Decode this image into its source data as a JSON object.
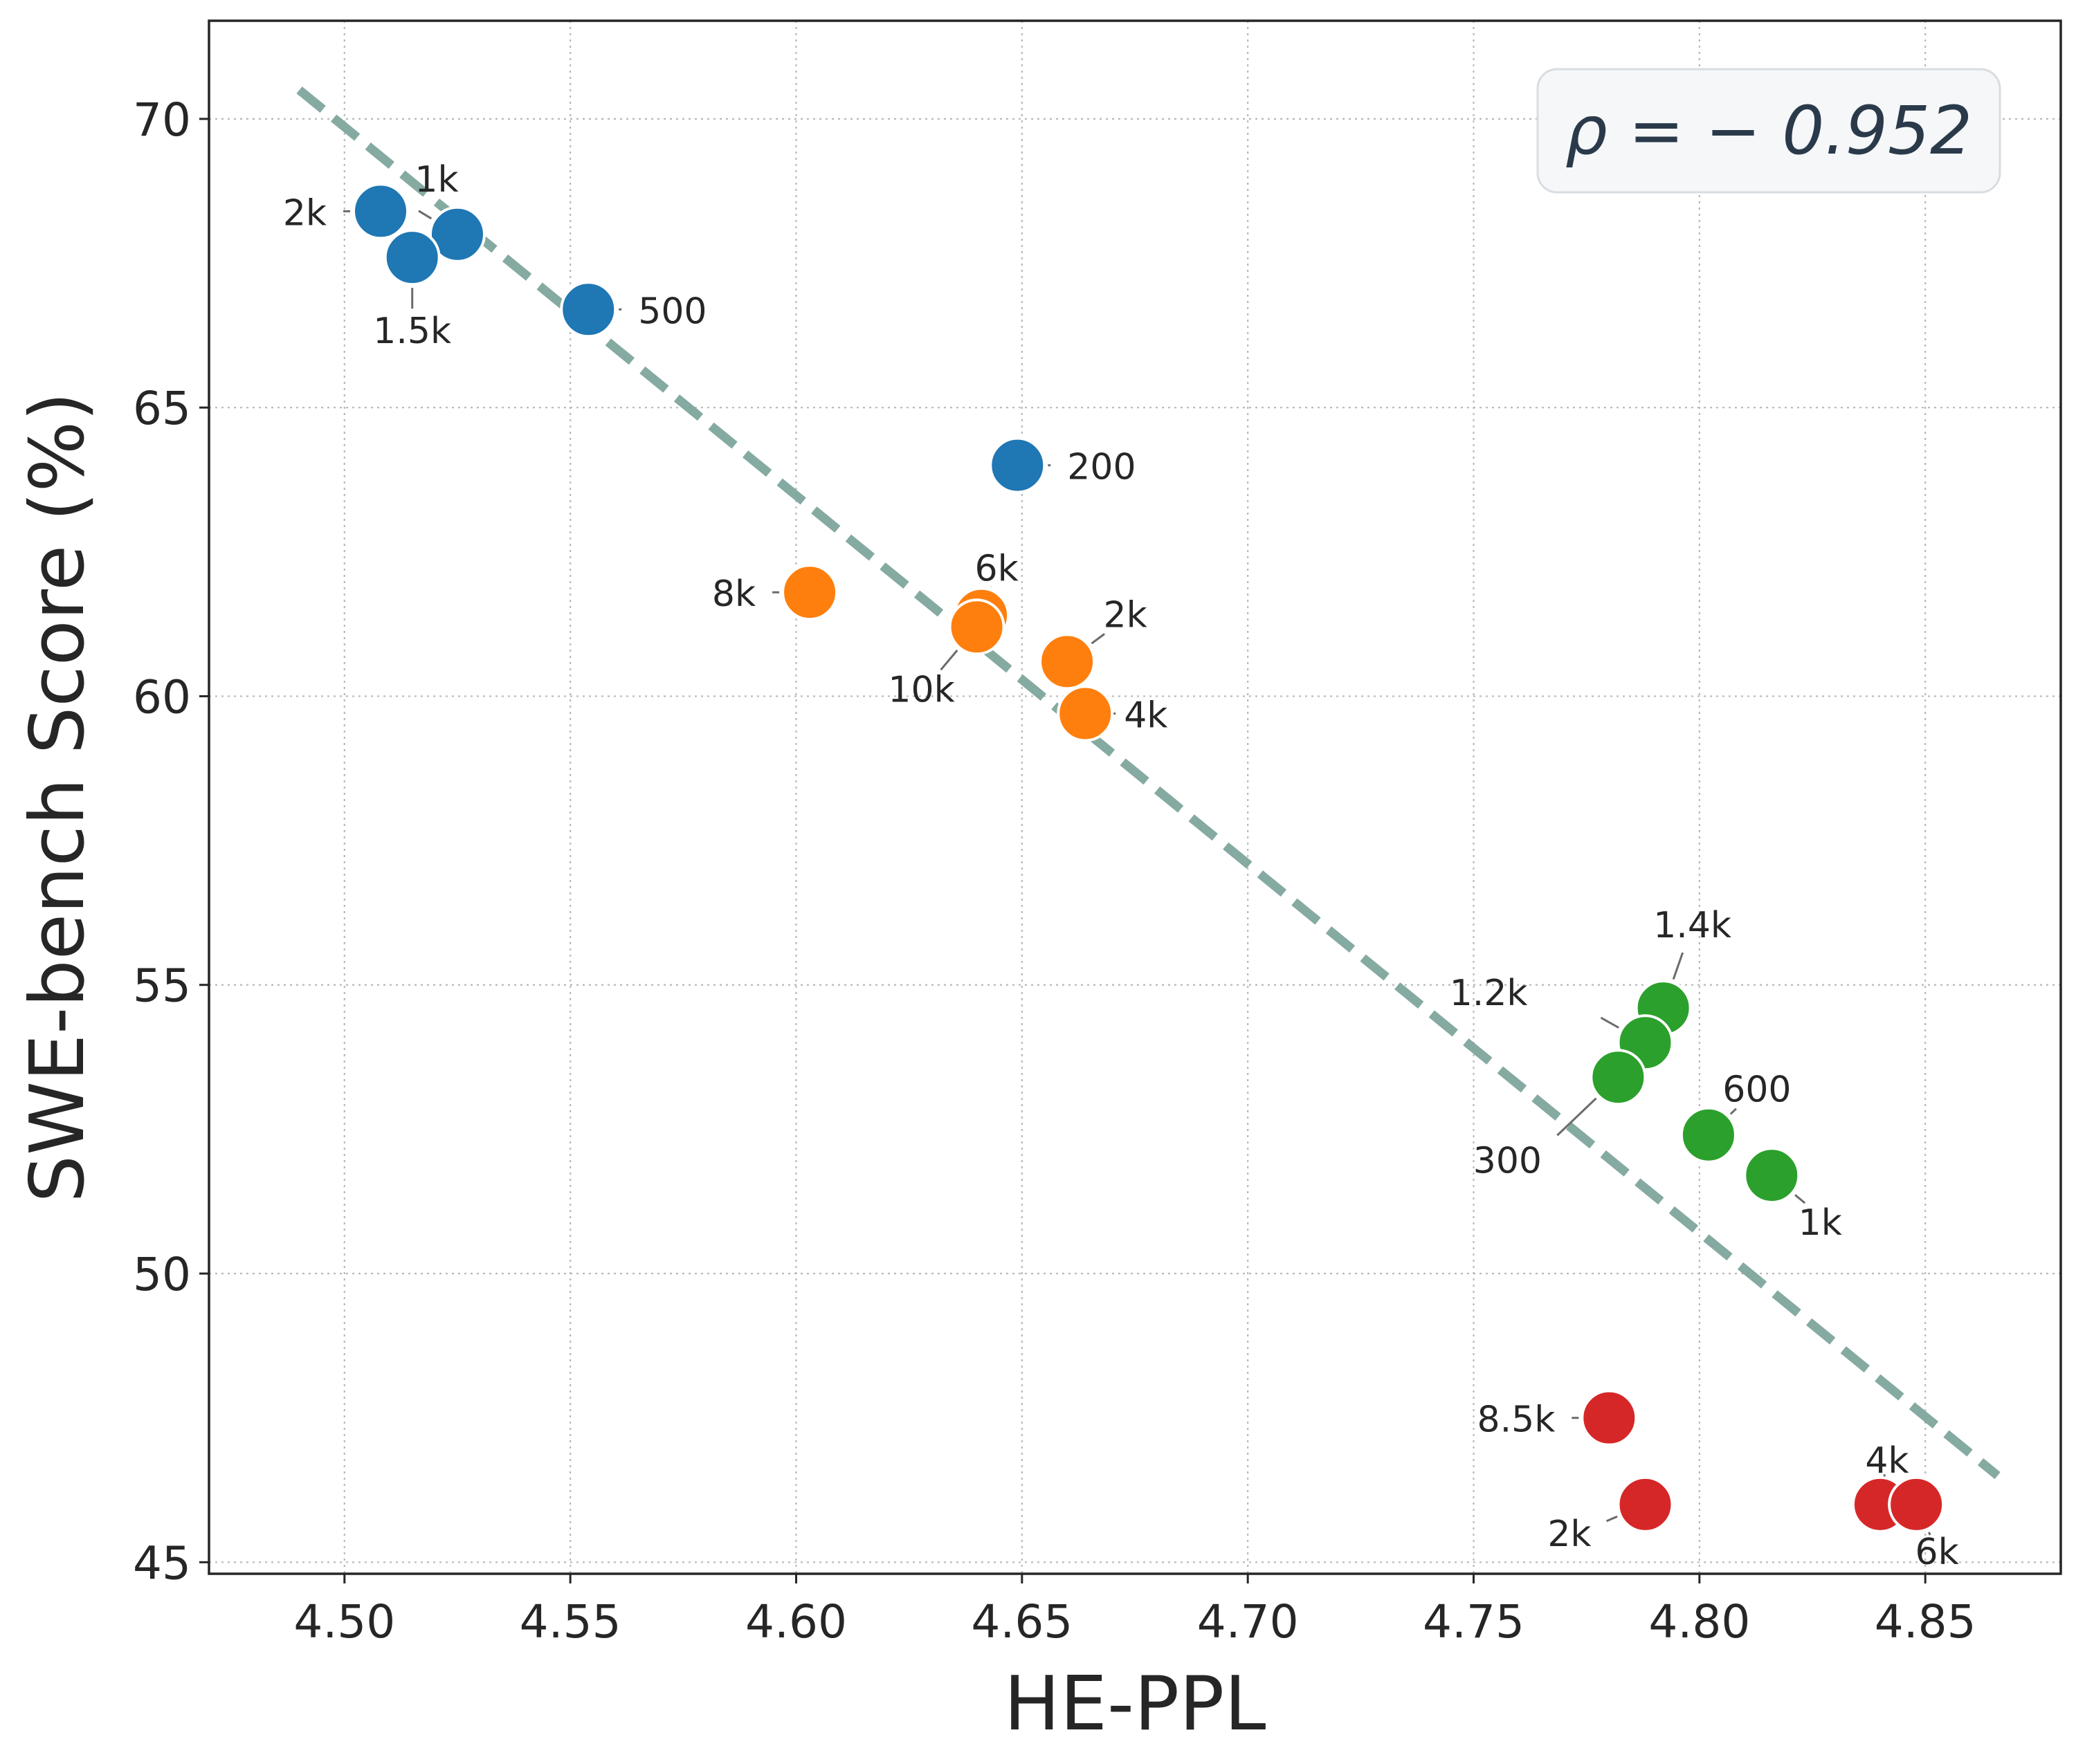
{
  "chart_data": {
    "type": "scatter",
    "title": "",
    "xlabel": "HE-PPL",
    "ylabel": "SWE-bench Score (%)",
    "xlim": [
      4.47,
      4.88
    ],
    "ylim": [
      44.8,
      71.7
    ],
    "xticks": [
      4.5,
      4.55,
      4.6,
      4.65,
      4.7,
      4.75,
      4.8,
      4.85
    ],
    "yticks": [
      45,
      50,
      55,
      60,
      65,
      70
    ],
    "xtick_labels": [
      "4.50",
      "4.55",
      "4.60",
      "4.65",
      "4.70",
      "4.75",
      "4.80",
      "4.85"
    ],
    "ytick_labels": [
      "45",
      "50",
      "55",
      "60",
      "65",
      "70"
    ],
    "grid": true,
    "legend": false,
    "annotation": "ρ = − 0.952",
    "trendline": {
      "x": [
        4.49,
        4.866
      ],
      "y": [
        70.5,
        46.5
      ],
      "color": "#7fa69e",
      "style": "dashed"
    },
    "series": [
      {
        "name": "blue",
        "color": "#1f77b4",
        "points": [
          {
            "x": 4.508,
            "y": 68.4,
            "label": "2k"
          },
          {
            "x": 4.525,
            "y": 68.0,
            "label": "1k"
          },
          {
            "x": 4.515,
            "y": 67.6,
            "label": "1.5k"
          },
          {
            "x": 4.554,
            "y": 66.7,
            "label": "500"
          },
          {
            "x": 4.649,
            "y": 64.0,
            "label": "200"
          }
        ]
      },
      {
        "name": "orange",
        "color": "#ff7f0e",
        "points": [
          {
            "x": 4.603,
            "y": 61.8,
            "label": "8k"
          },
          {
            "x": 4.641,
            "y": 61.4,
            "label": "6k"
          },
          {
            "x": 4.64,
            "y": 61.2,
            "label": "10k"
          },
          {
            "x": 4.66,
            "y": 60.6,
            "label": "2k"
          },
          {
            "x": 4.664,
            "y": 59.7,
            "label": "4k"
          }
        ]
      },
      {
        "name": "green",
        "color": "#2ca02c",
        "points": [
          {
            "x": 4.792,
            "y": 54.6,
            "label": "1.4k"
          },
          {
            "x": 4.788,
            "y": 54.0,
            "label": "1.2k"
          },
          {
            "x": 4.782,
            "y": 53.4,
            "label": "300"
          },
          {
            "x": 4.802,
            "y": 52.4,
            "label": "600"
          },
          {
            "x": 4.816,
            "y": 51.7,
            "label": "1k"
          }
        ]
      },
      {
        "name": "red",
        "color": "#d62728",
        "points": [
          {
            "x": 4.78,
            "y": 47.5,
            "label": "8.5k"
          },
          {
            "x": 4.788,
            "y": 46.0,
            "label": "2k"
          },
          {
            "x": 4.84,
            "y": 46.0,
            "label": "4k"
          },
          {
            "x": 4.848,
            "y": 46.0,
            "label": "6k"
          }
        ]
      }
    ]
  }
}
